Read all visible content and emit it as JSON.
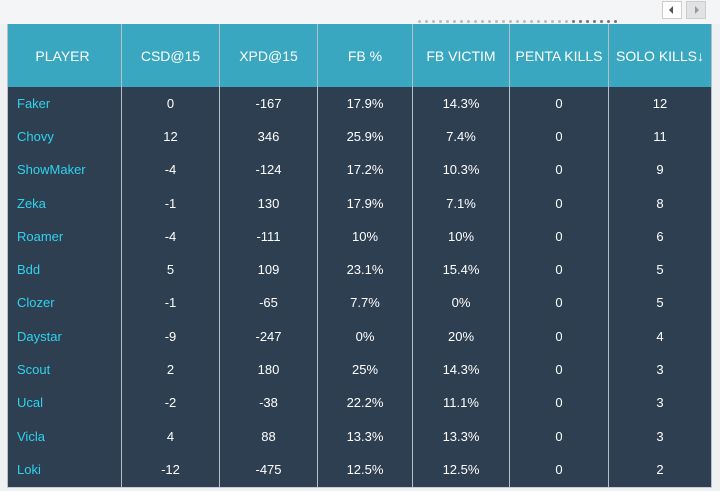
{
  "table": {
    "headers": [
      "PLAYER",
      "CSD@15",
      "XPD@15",
      "FB %",
      "FB VICTIM",
      "PENTA KILLS",
      "SOLO KILLS↓"
    ],
    "rows": [
      [
        "Faker",
        "0",
        "-167",
        "17.9%",
        "14.3%",
        "0",
        "12"
      ],
      [
        "Chovy",
        "12",
        "346",
        "25.9%",
        "7.4%",
        "0",
        "11"
      ],
      [
        "ShowMaker",
        "-4",
        "-124",
        "17.2%",
        "10.3%",
        "0",
        "9"
      ],
      [
        "Zeka",
        "-1",
        "130",
        "17.9%",
        "7.1%",
        "0",
        "8"
      ],
      [
        "Roamer",
        "-4",
        "-111",
        "10%",
        "10%",
        "0",
        "6"
      ],
      [
        "Bdd",
        "5",
        "109",
        "23.1%",
        "15.4%",
        "0",
        "5"
      ],
      [
        "Clozer",
        "-1",
        "-65",
        "7.7%",
        "0%",
        "0",
        "5"
      ],
      [
        "Daystar",
        "-9",
        "-247",
        "0%",
        "20%",
        "0",
        "4"
      ],
      [
        "Scout",
        "2",
        "180",
        "25%",
        "14.3%",
        "0",
        "3"
      ],
      [
        "Ucal",
        "-2",
        "-38",
        "22.2%",
        "11.1%",
        "0",
        "3"
      ],
      [
        "Vicla",
        "4",
        "88",
        "13.3%",
        "13.3%",
        "0",
        "3"
      ],
      [
        "Loki",
        "-12",
        "-475",
        "12.5%",
        "12.5%",
        "0",
        "2"
      ]
    ]
  }
}
